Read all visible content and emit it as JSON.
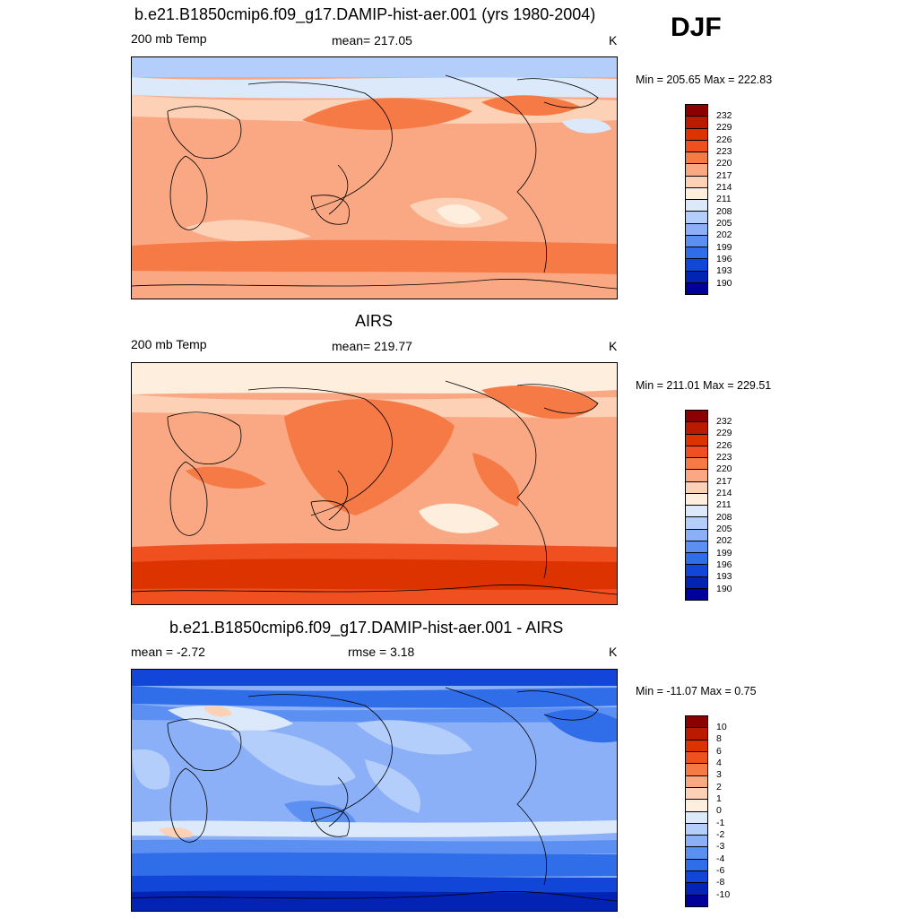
{
  "season": "DJF",
  "panels": [
    {
      "title": "b.e21.B1850cmip6.f09_g17.DAMIP-hist-aer.001 (yrs 1980-2004)",
      "left_label": "200 mb Temp",
      "center_label": "mean= 217.05",
      "right_label": "K",
      "minmax": "Min = 205.65 Max = 222.83",
      "colorbar_labels": [
        "232",
        "229",
        "226",
        "223",
        "220",
        "217",
        "214",
        "211",
        "208",
        "205",
        "202",
        "199",
        "196",
        "193",
        "190"
      ]
    },
    {
      "title": "AIRS",
      "left_label": "200 mb Temp",
      "center_label": "mean= 219.77",
      "right_label": "K",
      "minmax": "Min = 211.01 Max = 229.51",
      "colorbar_labels": [
        "232",
        "229",
        "226",
        "223",
        "220",
        "217",
        "214",
        "211",
        "208",
        "205",
        "202",
        "199",
        "196",
        "193",
        "190"
      ]
    },
    {
      "title": "b.e21.B1850cmip6.f09_g17.DAMIP-hist-aer.001 - AIRS",
      "left_label": "mean =  -2.72",
      "center_label": "rmse =   3.18",
      "right_label": "K",
      "minmax": "Min = -11.07 Max =   0.75",
      "colorbar_labels": [
        "10",
        "8",
        "6",
        "4",
        "3",
        "2",
        "1",
        "0",
        "-1",
        "-2",
        "-3",
        "-4",
        "-6",
        "-8",
        "-10"
      ]
    }
  ],
  "colors": {
    "abs_scale": [
      "#8b0000",
      "#bb1a00",
      "#dd3300",
      "#f04f20",
      "#f57a45",
      "#f9a883",
      "#fcd1b5",
      "#fdeede",
      "#dbe9fb",
      "#b4cefb",
      "#8cb0f7",
      "#5b8ff2",
      "#2f6ee8",
      "#1246d8",
      "#0323b4",
      "#00009a"
    ],
    "diff_scale": [
      "#8b0000",
      "#bb1a00",
      "#dd3300",
      "#f04f20",
      "#f57a45",
      "#f9a883",
      "#fcd1b5",
      "#fdeede",
      "#dbe9fb",
      "#b4cefb",
      "#8cb0f7",
      "#5b8ff2",
      "#2f6ee8",
      "#1246d8",
      "#0323b4",
      "#00009a"
    ]
  }
}
